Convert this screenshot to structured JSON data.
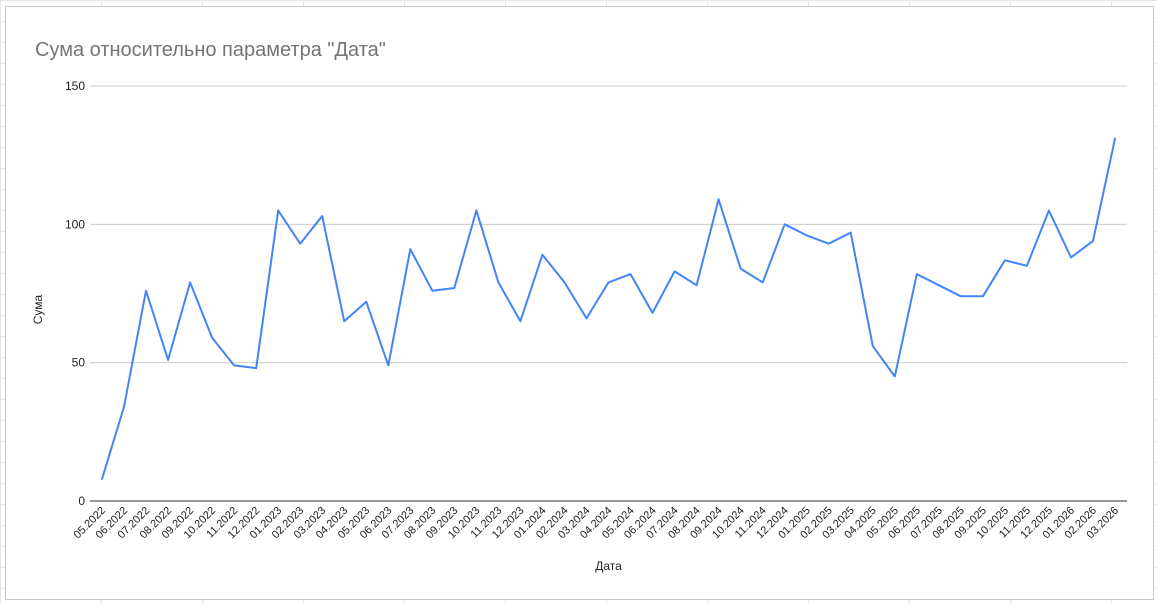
{
  "chart_data": {
    "type": "line",
    "title": "Сума относительно параметра \"Дата\"",
    "xlabel": "Дата",
    "ylabel": "Сума",
    "ylim": [
      0,
      150
    ],
    "yticks": [
      "0",
      "50",
      "100",
      "150"
    ],
    "grid": true,
    "legend": "none",
    "line_color": "#4285f4",
    "categories": [
      "05.2022",
      "06.2022",
      "07.2022",
      "08.2022",
      "09.2022",
      "10.2022",
      "11.2022",
      "12.2022",
      "01.2023",
      "02.2023",
      "03.2023",
      "04.2023",
      "05.2023",
      "06.2023",
      "07.2023",
      "08.2023",
      "09.2023",
      "10.2023",
      "11.2023",
      "12.2023",
      "01.2024",
      "02.2024",
      "03.2024",
      "04.2024",
      "05.2024",
      "06.2024",
      "07.2024",
      "08.2024",
      "09.2024",
      "10.2024",
      "11.2024",
      "12.2024",
      "01.2025",
      "02.2025",
      "03.2025",
      "04.2025",
      "05.2025",
      "06.2025",
      "07.2025",
      "08.2025",
      "09.2025",
      "10.2025",
      "11.2025",
      "12.2025",
      "01.2026",
      "02.2026",
      "03.2026"
    ],
    "series": [
      {
        "values": [
          8,
          34,
          76,
          51,
          79,
          59,
          49,
          48,
          105,
          93,
          103,
          65,
          72,
          49,
          91,
          76,
          77,
          105,
          79,
          65,
          89,
          79,
          66,
          79,
          82,
          68,
          83,
          78,
          109,
          84,
          79,
          100,
          96,
          93,
          97,
          56,
          45,
          82,
          78,
          74,
          74,
          87,
          85,
          105,
          88,
          94,
          131
        ]
      }
    ]
  }
}
